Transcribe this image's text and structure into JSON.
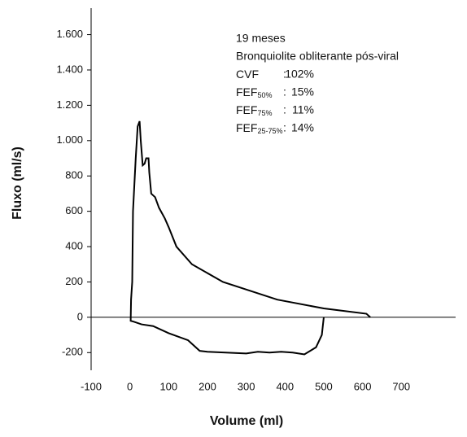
{
  "chart_data": {
    "type": "line",
    "xlabel": "Volume (ml)",
    "ylabel": "Fluxo (ml/s)",
    "xlim": [
      -100,
      840
    ],
    "ylim": [
      -300,
      1750
    ],
    "xticks": [
      -100,
      0,
      100,
      200,
      300,
      400,
      500,
      600,
      700
    ],
    "yticks": [
      -200,
      0,
      200,
      400,
      600,
      800,
      {
        "value": 1000,
        "label": "1.000"
      },
      {
        "value": 1200,
        "label": "1.200"
      },
      {
        "value": 1400,
        "label": "1.400"
      },
      {
        "value": 1600,
        "label": "1.600"
      }
    ],
    "zero_line": true,
    "annotation": {
      "lines": [
        "19 meses",
        "Bronquiolite obliterante pós-viral"
      ],
      "rows": [
        {
          "label": "CVF",
          "sub": null,
          "sep": ":",
          "value": "102%"
        },
        {
          "label": "FEF",
          "sub": "50%",
          "sep": ":",
          "value": "15%"
        },
        {
          "label": "FEF",
          "sub": "75%",
          "sep": ":",
          "value": "11%"
        },
        {
          "label": "FEF",
          "sub": "25-75%",
          "sep": ":",
          "value": "14%"
        }
      ]
    },
    "series": [
      {
        "color": "#000000",
        "x": [
          620,
          610,
          500,
          380,
          240,
          160,
          120,
          100,
          90,
          75,
          65,
          55,
          50,
          48,
          42,
          38,
          33,
          28,
          25,
          20,
          15,
          8,
          6,
          3,
          2,
          10,
          30,
          60,
          100,
          150,
          180,
          200,
          300,
          330,
          360,
          390,
          420,
          450,
          480,
          495,
          500
        ],
        "values": [
          0,
          20,
          50,
          100,
          200,
          300,
          400,
          510,
          560,
          620,
          680,
          700,
          820,
          900,
          900,
          870,
          860,
          1000,
          1110,
          1080,
          900,
          600,
          200,
          100,
          -20,
          -25,
          -40,
          -50,
          -90,
          -130,
          -190,
          -195,
          -205,
          -195,
          -200,
          -195,
          -200,
          -210,
          -170,
          -100,
          0
        ]
      }
    ]
  }
}
